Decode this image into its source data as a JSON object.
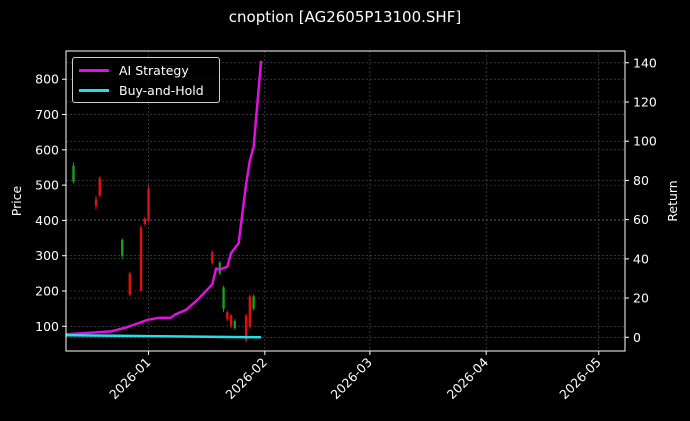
{
  "title": "cnoption [AG2605P13100.SHF]",
  "colors": {
    "background": "#000000",
    "ai_strategy": "#e010e0",
    "buy_and_hold": "#22e0e8",
    "candle_up": "#1a9e1a",
    "candle_down": "#e01010",
    "grid": "#555555",
    "axis": "#ffffff"
  },
  "legend": {
    "items": [
      {
        "label": "AI Strategy",
        "color": "#e010e0"
      },
      {
        "label": "Buy-and-Hold",
        "color": "#22e0e8"
      }
    ]
  },
  "chart_data": {
    "type": "line",
    "title": "cnoption [AG2605P13100.SHF]",
    "xlabel": "",
    "ylabel_left": "Price",
    "ylabel_right": "Return",
    "x_ticks": [
      "2026-01",
      "2026-02",
      "2026-03",
      "2026-04",
      "2026-05"
    ],
    "y_left_ticks": [
      100,
      200,
      300,
      400,
      500,
      600,
      700,
      800
    ],
    "y_right_ticks": [
      0,
      20,
      40,
      60,
      80,
      100,
      120,
      140
    ],
    "y_left_range": [
      30,
      880
    ],
    "y_right_range": [
      -7,
      146
    ],
    "x_range": [
      "2025-12-10",
      "2026-05-08"
    ],
    "grid": true,
    "legend_position": "upper left",
    "series": [
      {
        "name": "AI Strategy",
        "axis": "right",
        "x": [
          "2025-12-10",
          "2025-12-14",
          "2025-12-18",
          "2025-12-22",
          "2025-12-26",
          "2025-12-29",
          "2026-01-01",
          "2026-01-04",
          "2026-01-07",
          "2026-01-08",
          "2026-01-11",
          "2026-01-14",
          "2026-01-16",
          "2026-01-18",
          "2026-01-19",
          "2026-01-20",
          "2026-01-22",
          "2026-01-23",
          "2026-01-25",
          "2026-01-27",
          "2026-01-28",
          "2026-01-29",
          "2026-01-31"
        ],
        "values": [
          1.5,
          2,
          2.5,
          3,
          5,
          7,
          9,
          10,
          10,
          11.5,
          14,
          19,
          23,
          27,
          35,
          34.5,
          36,
          43,
          48,
          78,
          90,
          97,
          141
        ]
      },
      {
        "name": "Buy-and-Hold",
        "axis": "right",
        "x": [
          "2025-12-10",
          "2026-01-01",
          "2026-01-31"
        ],
        "values": [
          1.0,
          0.6,
          0.0
        ]
      },
      {
        "name": "Price (OHLC candles)",
        "axis": "left",
        "candles": [
          {
            "x": "2025-12-12",
            "open": 555,
            "close": 510,
            "high": 565,
            "low": 505,
            "dir": "up"
          },
          {
            "x": "2025-12-18",
            "open": 440,
            "close": 460,
            "high": 470,
            "low": 430,
            "dir": "down"
          },
          {
            "x": "2025-12-19",
            "open": 470,
            "close": 520,
            "high": 525,
            "low": 465,
            "dir": "down"
          },
          {
            "x": "2025-12-25",
            "open": 345,
            "close": 300,
            "high": 350,
            "low": 290,
            "dir": "up"
          },
          {
            "x": "2025-12-27",
            "open": 190,
            "close": 250,
            "high": 255,
            "low": 185,
            "dir": "down"
          },
          {
            "x": "2025-12-30",
            "open": 200,
            "close": 380,
            "high": 385,
            "low": 200,
            "dir": "down"
          },
          {
            "x": "2025-12-31",
            "open": 390,
            "close": 405,
            "high": 410,
            "low": 385,
            "dir": "down"
          },
          {
            "x": "2026-01-01",
            "open": 400,
            "close": 490,
            "high": 500,
            "low": 395,
            "dir": "down"
          },
          {
            "x": "2026-01-18",
            "open": 280,
            "close": 310,
            "high": 315,
            "low": 275,
            "dir": "down"
          },
          {
            "x": "2026-01-20",
            "open": 280,
            "close": 250,
            "high": 285,
            "low": 245,
            "dir": "up"
          },
          {
            "x": "2026-01-21",
            "open": 210,
            "close": 150,
            "high": 215,
            "low": 140,
            "dir": "up"
          },
          {
            "x": "2026-01-22",
            "open": 140,
            "close": 120,
            "high": 145,
            "low": 115,
            "dir": "down"
          },
          {
            "x": "2026-01-23",
            "open": 130,
            "close": 100,
            "high": 135,
            "low": 95,
            "dir": "down"
          },
          {
            "x": "2026-01-24",
            "open": 115,
            "close": 95,
            "high": 120,
            "low": 90,
            "dir": "up"
          },
          {
            "x": "2026-01-27",
            "open": 60,
            "close": 130,
            "high": 135,
            "low": 55,
            "dir": "down"
          },
          {
            "x": "2026-01-28",
            "open": 100,
            "close": 185,
            "high": 190,
            "low": 95,
            "dir": "down"
          },
          {
            "x": "2026-01-29",
            "open": 185,
            "close": 150,
            "high": 190,
            "low": 145,
            "dir": "up"
          }
        ]
      }
    ]
  }
}
